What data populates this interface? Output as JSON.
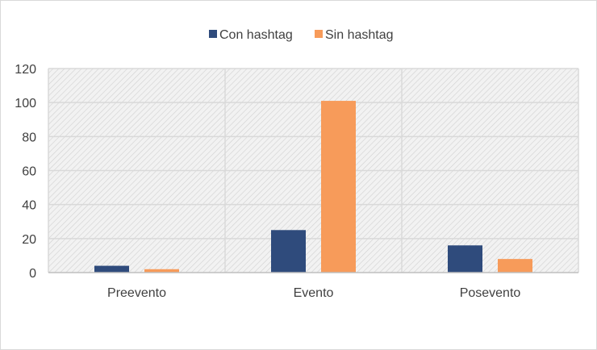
{
  "chart_data": {
    "type": "bar",
    "title": "",
    "xlabel": "",
    "ylabel": "",
    "categories": [
      "Preevento",
      "Evento",
      "Posevento"
    ],
    "series": [
      {
        "name": "Con hashtag",
        "values": [
          4,
          25,
          16
        ],
        "color": "#2f4b7c"
      },
      {
        "name": "Sin hashtag",
        "values": [
          2,
          101,
          8
        ],
        "color": "#f79b5a"
      }
    ],
    "ylim": [
      0,
      120
    ],
    "yticks": [
      "0",
      "20",
      "40",
      "60",
      "80",
      "100",
      "120"
    ],
    "grid": true,
    "legend": "top-center",
    "plot_background": "hatched-light-gray"
  }
}
